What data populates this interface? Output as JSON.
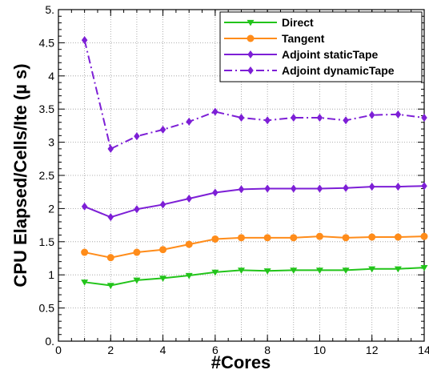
{
  "chart_data": {
    "type": "line",
    "xlabel": "#Cores",
    "ylabel": "CPU Elapsed/Cells/Ite (µ s)",
    "xlim": [
      0,
      14
    ],
    "ylim": [
      0,
      5
    ],
    "x_ticks": [
      "0",
      "2",
      "4",
      "6",
      "8",
      "10",
      "12",
      "14"
    ],
    "y_ticks": [
      "0.",
      "0.5",
      "1",
      "1.5",
      "2",
      "2.5",
      "3",
      "3.5",
      "4",
      "4.5",
      "5."
    ],
    "grid": "dotted, both axes",
    "legend_position": "top-right",
    "series": [
      {
        "name": "Direct",
        "color": "#22c41a",
        "line": "solid",
        "marker": "triangle-down",
        "x": [
          1,
          2,
          3,
          4,
          5,
          6,
          7,
          8,
          9,
          10,
          11,
          12,
          13,
          14
        ],
        "values": [
          0.89,
          0.84,
          0.92,
          0.95,
          0.99,
          1.04,
          1.07,
          1.06,
          1.07,
          1.07,
          1.07,
          1.09,
          1.09,
          1.11
        ]
      },
      {
        "name": "Tangent",
        "color": "#ff8c1a",
        "line": "solid",
        "marker": "circle",
        "x": [
          1,
          2,
          3,
          4,
          5,
          6,
          7,
          8,
          9,
          10,
          11,
          12,
          13,
          14
        ],
        "values": [
          1.34,
          1.26,
          1.34,
          1.38,
          1.46,
          1.54,
          1.56,
          1.56,
          1.56,
          1.58,
          1.56,
          1.57,
          1.57,
          1.58
        ]
      },
      {
        "name": "Adjoint staticTape",
        "color": "#7d1fd6",
        "line": "solid",
        "marker": "diamond",
        "x": [
          1,
          2,
          3,
          4,
          5,
          6,
          7,
          8,
          9,
          10,
          11,
          12,
          13,
          14
        ],
        "values": [
          2.03,
          1.87,
          1.99,
          2.06,
          2.15,
          2.24,
          2.29,
          2.3,
          2.3,
          2.3,
          2.31,
          2.33,
          2.33,
          2.34
        ]
      },
      {
        "name": "Adjoint dynamicTape",
        "color": "#7d1fd6",
        "line": "dashdot",
        "marker": "diamond",
        "x": [
          1,
          2,
          3,
          4,
          5,
          6,
          7,
          8,
          9,
          10,
          11,
          12,
          13,
          14
        ],
        "values": [
          4.54,
          2.9,
          3.09,
          3.19,
          3.31,
          3.46,
          3.37,
          3.33,
          3.37,
          3.37,
          3.33,
          3.41,
          3.42,
          3.37
        ]
      }
    ]
  }
}
